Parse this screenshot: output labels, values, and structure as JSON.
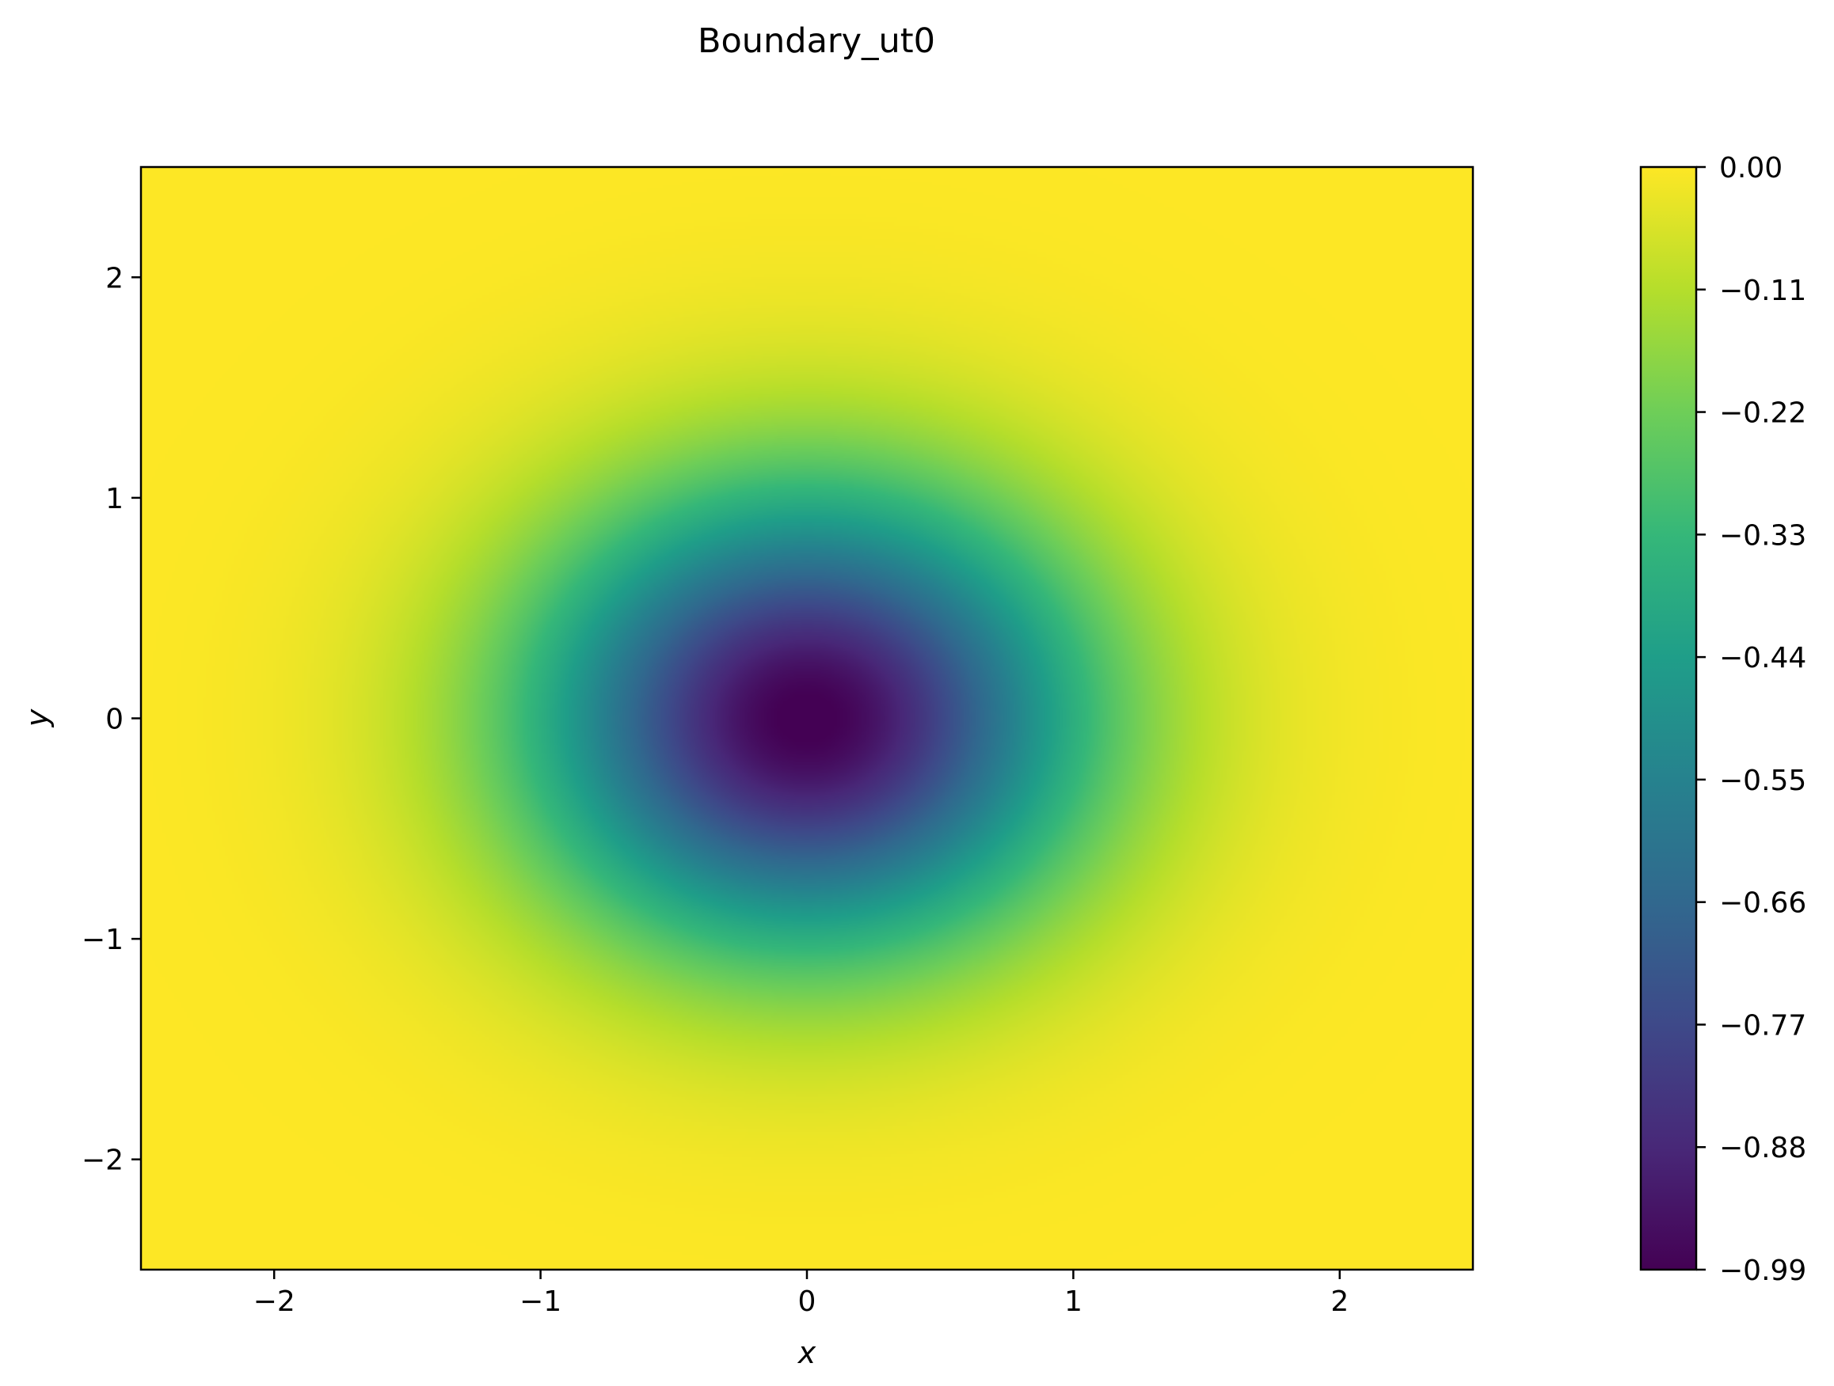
{
  "chart_data": {
    "type": "heatmap",
    "title": "Boundary_ut0",
    "xlabel": "x",
    "ylabel": "y",
    "xlim": [
      -2.5,
      2.5
    ],
    "ylim": [
      -2.5,
      2.5
    ],
    "x_ticks": [
      -2,
      -1,
      0,
      1,
      2
    ],
    "x_tick_labels": [
      "−2",
      "−1",
      "0",
      "1",
      "2"
    ],
    "y_ticks": [
      -2,
      -1,
      0,
      1,
      2
    ],
    "y_tick_labels": [
      "−2",
      "−1",
      "0",
      "1",
      "2"
    ],
    "grid": false,
    "colormap": "viridis",
    "function": "u(x, y) = -exp(-(x^2 + y^2))",
    "center": [
      0,
      0
    ],
    "min_value": -0.99,
    "max_value": 0.0,
    "colorbar": {
      "ticks": [
        0.0,
        -0.11,
        -0.22,
        -0.33,
        -0.44,
        -0.55,
        -0.66,
        -0.77,
        -0.88,
        -0.99
      ],
      "tick_labels": [
        "0.00",
        "−0.11",
        "−0.22",
        "−0.33",
        "−0.44",
        "−0.55",
        "−0.66",
        "−0.77",
        "−0.88",
        "−0.99"
      ],
      "range": [
        -0.99,
        0.0
      ]
    },
    "colors": {
      "viridis": [
        "#440154",
        "#482878",
        "#3e4989",
        "#31688e",
        "#26828e",
        "#1f9e89",
        "#35b779",
        "#6ece58",
        "#b5de2b",
        "#fde725"
      ],
      "axes": "#000000",
      "background": "#ffffff"
    }
  }
}
